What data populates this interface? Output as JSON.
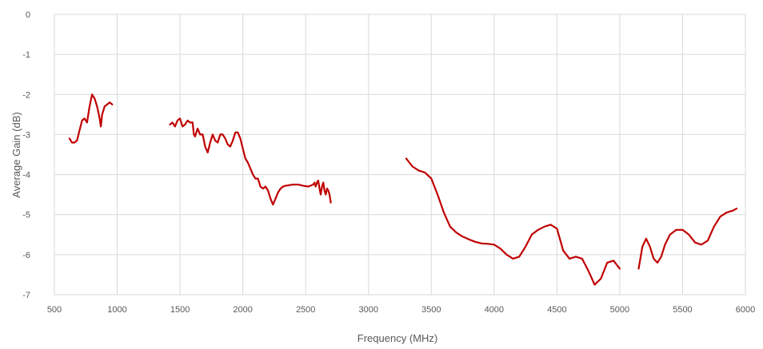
{
  "chart_data": {
    "type": "line",
    "title": "",
    "xlabel": "Frequency (MHz)",
    "ylabel": "Average Gain (dB)",
    "xlim": [
      500,
      6000
    ],
    "ylim": [
      -7,
      0
    ],
    "x_ticks": [
      500,
      1000,
      1500,
      2000,
      2500,
      3000,
      3500,
      4000,
      4500,
      5000,
      5500,
      6000
    ],
    "y_ticks": [
      0,
      -1,
      -2,
      -3,
      -4,
      -5,
      -6,
      -7
    ],
    "grid": true,
    "legend": "none",
    "series_color": "#c00000",
    "segments": [
      {
        "x": [
          620,
          640,
          660,
          680,
          700,
          720,
          740,
          760,
          780,
          800,
          820,
          840,
          860,
          870,
          880,
          900,
          920,
          940,
          960
        ],
        "y": [
          -3.1,
          -3.2,
          -3.2,
          -3.15,
          -2.9,
          -2.65,
          -2.6,
          -2.7,
          -2.3,
          -2.0,
          -2.1,
          -2.3,
          -2.6,
          -2.8,
          -2.5,
          -2.3,
          -2.25,
          -2.2,
          -2.25
        ]
      },
      {
        "x": [
          1420,
          1440,
          1460,
          1480,
          1500,
          1520,
          1540,
          1560,
          1580,
          1600,
          1610,
          1620,
          1640,
          1660,
          1680,
          1700,
          1720,
          1740,
          1760,
          1780,
          1800,
          1820,
          1840,
          1860,
          1880,
          1900,
          1920,
          1940,
          1960,
          1980,
          2000,
          2020,
          2040,
          2060,
          2080,
          2100,
          2120,
          2140,
          2160,
          2180,
          2200,
          2220,
          2240,
          2260,
          2280,
          2300,
          2320,
          2340,
          2360,
          2380,
          2400,
          2440,
          2480,
          2520,
          2560,
          2570,
          2580,
          2590,
          2600,
          2610,
          2620,
          2630,
          2640,
          2650,
          2660,
          2670,
          2680,
          2690,
          2700
        ],
        "y": [
          -2.75,
          -2.7,
          -2.8,
          -2.65,
          -2.6,
          -2.8,
          -2.75,
          -2.65,
          -2.7,
          -2.7,
          -3.0,
          -3.05,
          -2.85,
          -3.0,
          -3.0,
          -3.3,
          -3.45,
          -3.2,
          -3.0,
          -3.15,
          -3.2,
          -3.0,
          -3.0,
          -3.1,
          -3.25,
          -3.3,
          -3.15,
          -2.95,
          -2.95,
          -3.1,
          -3.35,
          -3.6,
          -3.7,
          -3.85,
          -4.0,
          -4.1,
          -4.1,
          -4.3,
          -4.35,
          -4.3,
          -4.4,
          -4.6,
          -4.75,
          -4.6,
          -4.45,
          -4.35,
          -4.3,
          -4.28,
          -4.27,
          -4.26,
          -4.25,
          -4.25,
          -4.28,
          -4.3,
          -4.25,
          -4.2,
          -4.3,
          -4.2,
          -4.15,
          -4.35,
          -4.5,
          -4.3,
          -4.2,
          -4.4,
          -4.5,
          -4.35,
          -4.4,
          -4.5,
          -4.7
        ]
      },
      {
        "x": [
          3300,
          3350,
          3400,
          3450,
          3500,
          3550,
          3600,
          3650,
          3700,
          3750,
          3800,
          3850,
          3900,
          3950,
          4000,
          4050,
          4100,
          4150,
          4200,
          4250,
          4300,
          4350,
          4400,
          4450,
          4500,
          4550,
          4600,
          4650,
          4700,
          4750,
          4800,
          4850,
          4900,
          4950,
          5000
        ],
        "y": [
          -3.6,
          -3.8,
          -3.9,
          -3.95,
          -4.1,
          -4.5,
          -4.95,
          -5.3,
          -5.45,
          -5.55,
          -5.62,
          -5.68,
          -5.72,
          -5.73,
          -5.75,
          -5.85,
          -6.0,
          -6.1,
          -6.05,
          -5.8,
          -5.5,
          -5.38,
          -5.3,
          -5.25,
          -5.35,
          -5.9,
          -6.1,
          -6.05,
          -6.1,
          -6.4,
          -6.75,
          -6.6,
          -6.2,
          -6.15,
          -6.35
        ]
      },
      {
        "x": [
          5150,
          5180,
          5210,
          5240,
          5270,
          5300,
          5330,
          5360,
          5400,
          5450,
          5500,
          5550,
          5600,
          5650,
          5700,
          5750,
          5800,
          5850,
          5900,
          5930
        ],
        "y": [
          -6.35,
          -5.8,
          -5.6,
          -5.8,
          -6.1,
          -6.2,
          -6.05,
          -5.75,
          -5.5,
          -5.38,
          -5.38,
          -5.5,
          -5.7,
          -5.75,
          -5.65,
          -5.3,
          -5.05,
          -4.95,
          -4.9,
          -4.85
        ]
      }
    ]
  }
}
